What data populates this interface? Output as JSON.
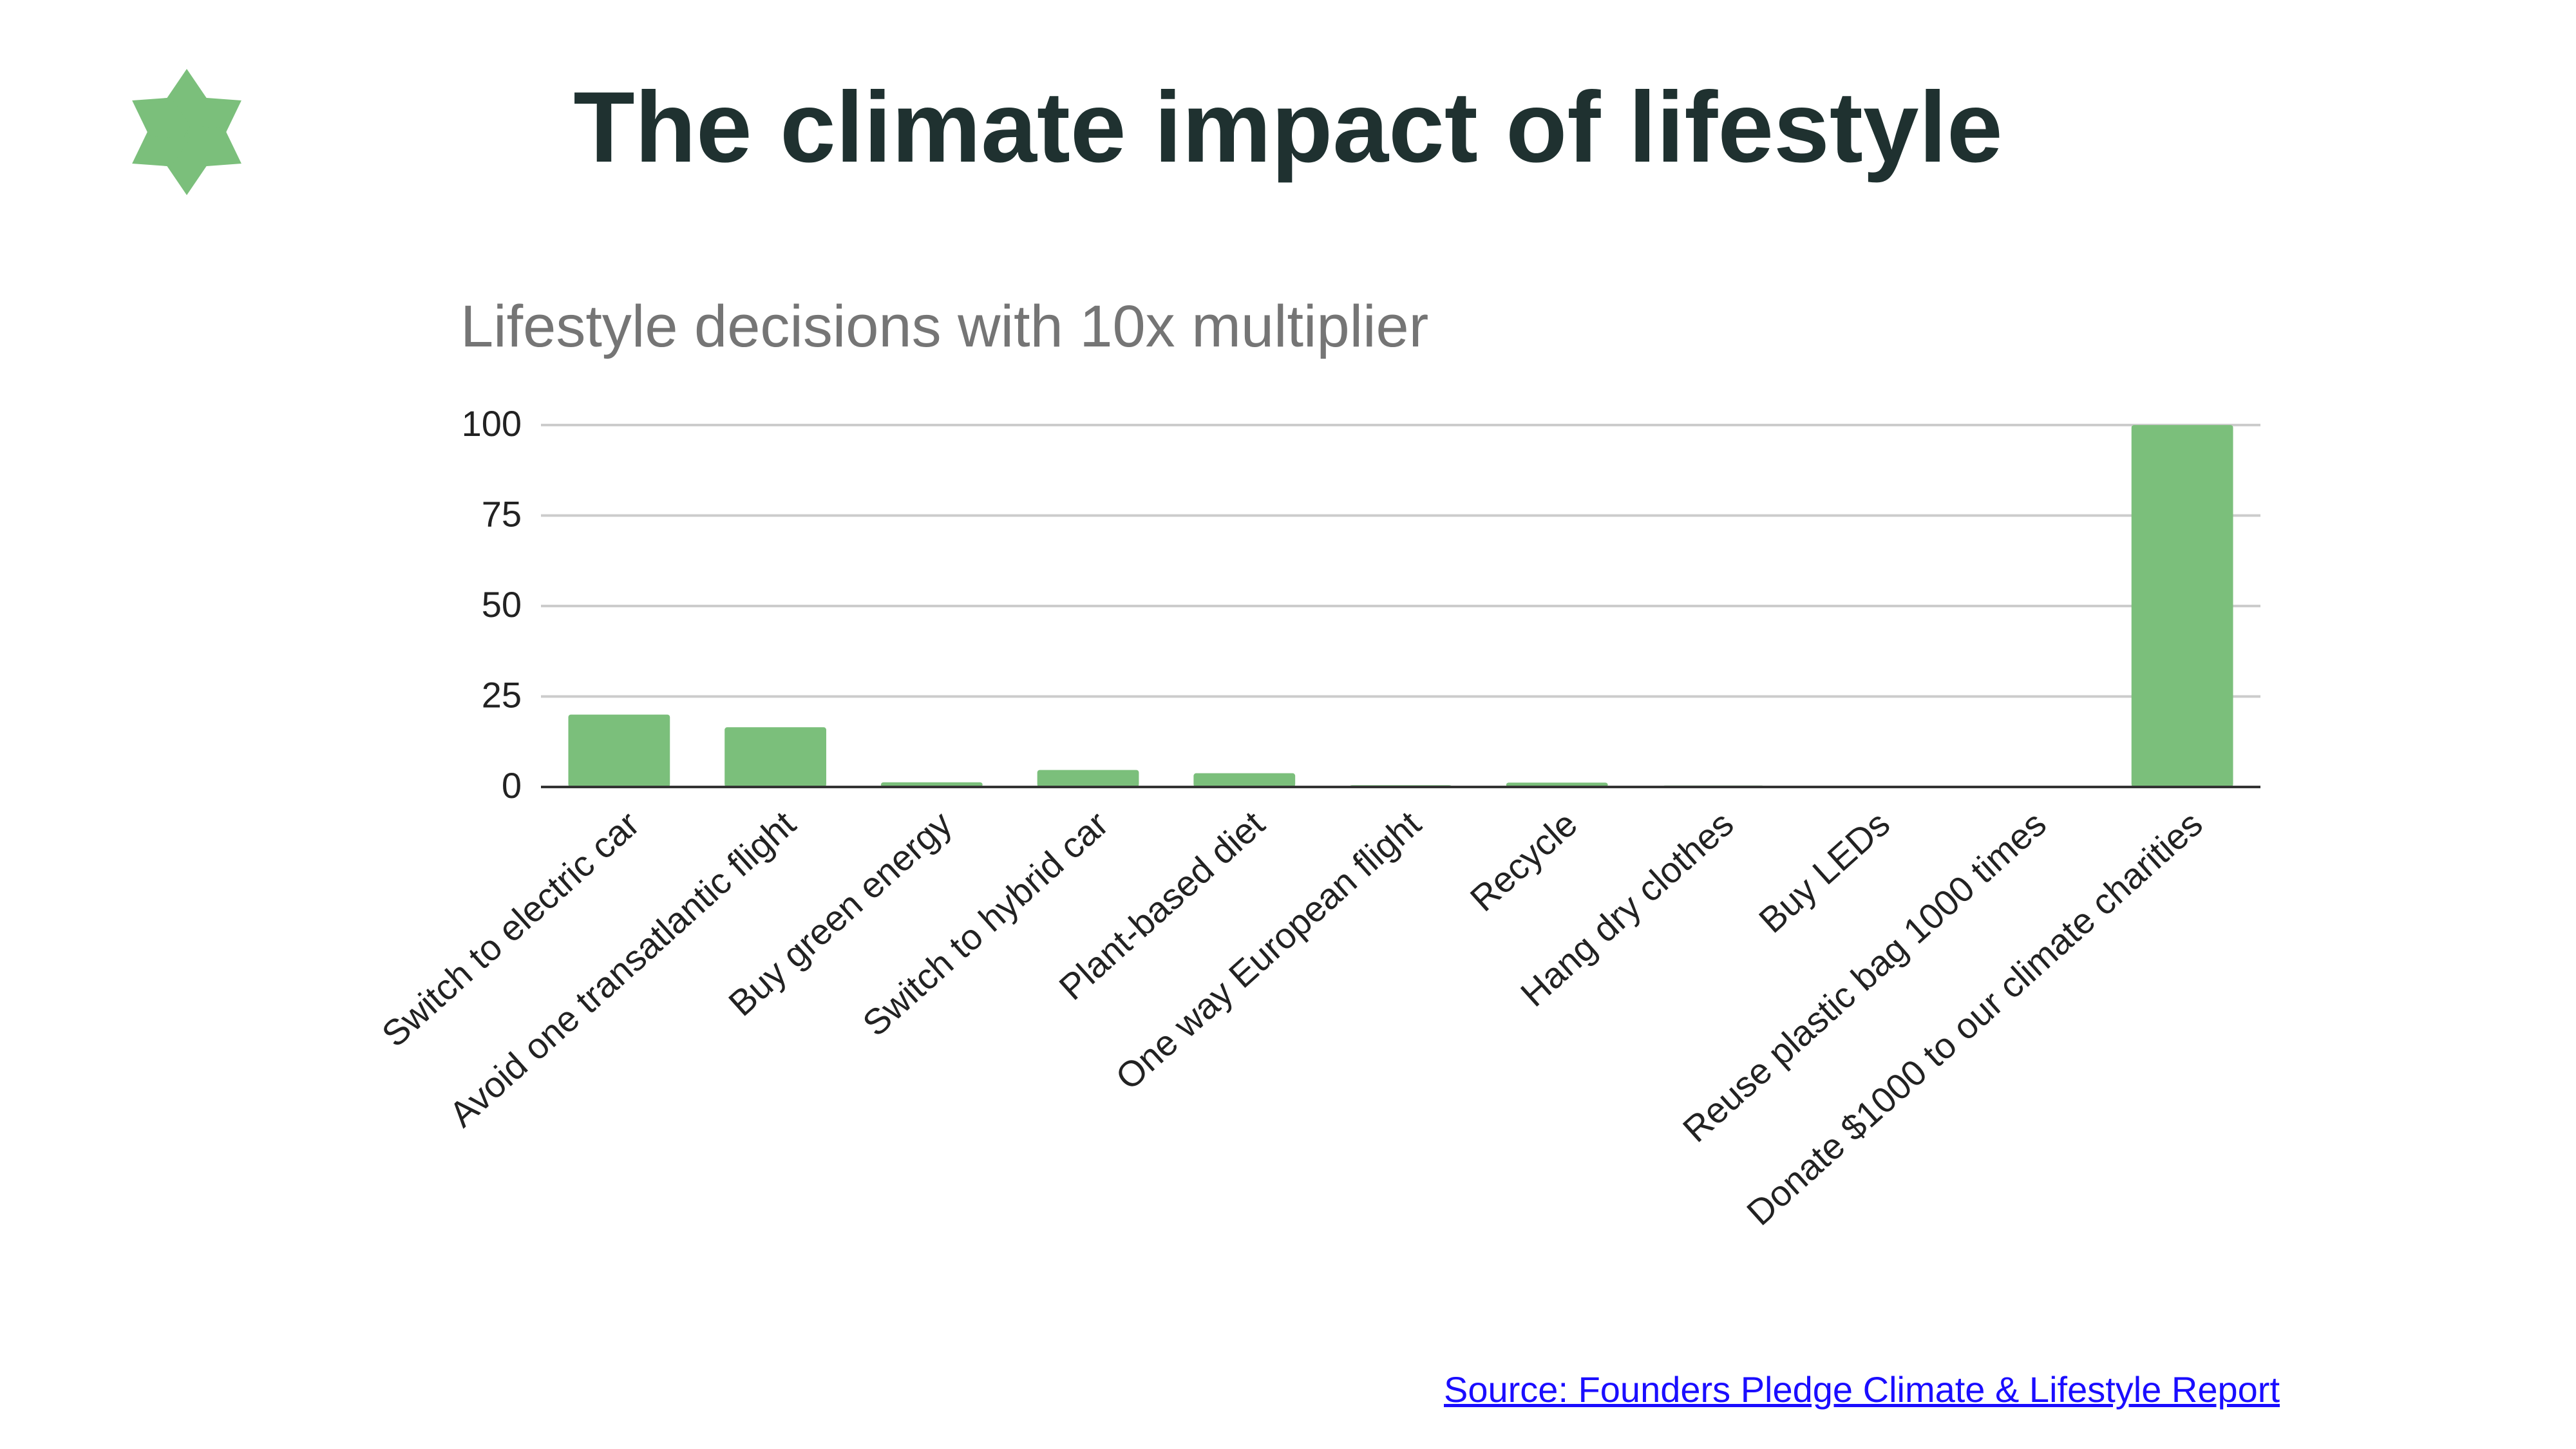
{
  "slide": {
    "title": "The climate impact of lifestyle",
    "source_link": "Source: Founders Pledge Climate & Lifestyle Report",
    "logo_icon": "asterisk-logo-icon"
  },
  "colors": {
    "bar": "#7bbf7b",
    "logo": "#7bbf7b",
    "title": "#1f3130",
    "chart_title": "#757575",
    "axis_text": "#222222",
    "grid": "#cccccc",
    "link": "#1a0dff"
  },
  "chart_data": {
    "type": "bar",
    "title": "Lifestyle decisions with 10x multiplier",
    "xlabel": "",
    "ylabel": "",
    "ylim": [
      0,
      100
    ],
    "yticks": [
      0,
      25,
      50,
      75,
      100
    ],
    "ytick_labels": [
      "0",
      "25",
      "50",
      "75",
      "100"
    ],
    "grid": true,
    "legend": "none",
    "categories": [
      "Switch to electric car",
      "Avoid one transatlantic flight",
      "Buy green energy",
      "Switch to hybrid car",
      "Plant-based diet",
      "One way European flight",
      "Recycle",
      "Hang dry clothes",
      "Buy LEDs",
      "Reuse plastic bag 1000 times",
      "Donate $1000 to our climate charities"
    ],
    "values": [
      20,
      16.5,
      1.3,
      4.7,
      3.8,
      0.5,
      1.2,
      0.4,
      0.3,
      0.3,
      100
    ]
  }
}
